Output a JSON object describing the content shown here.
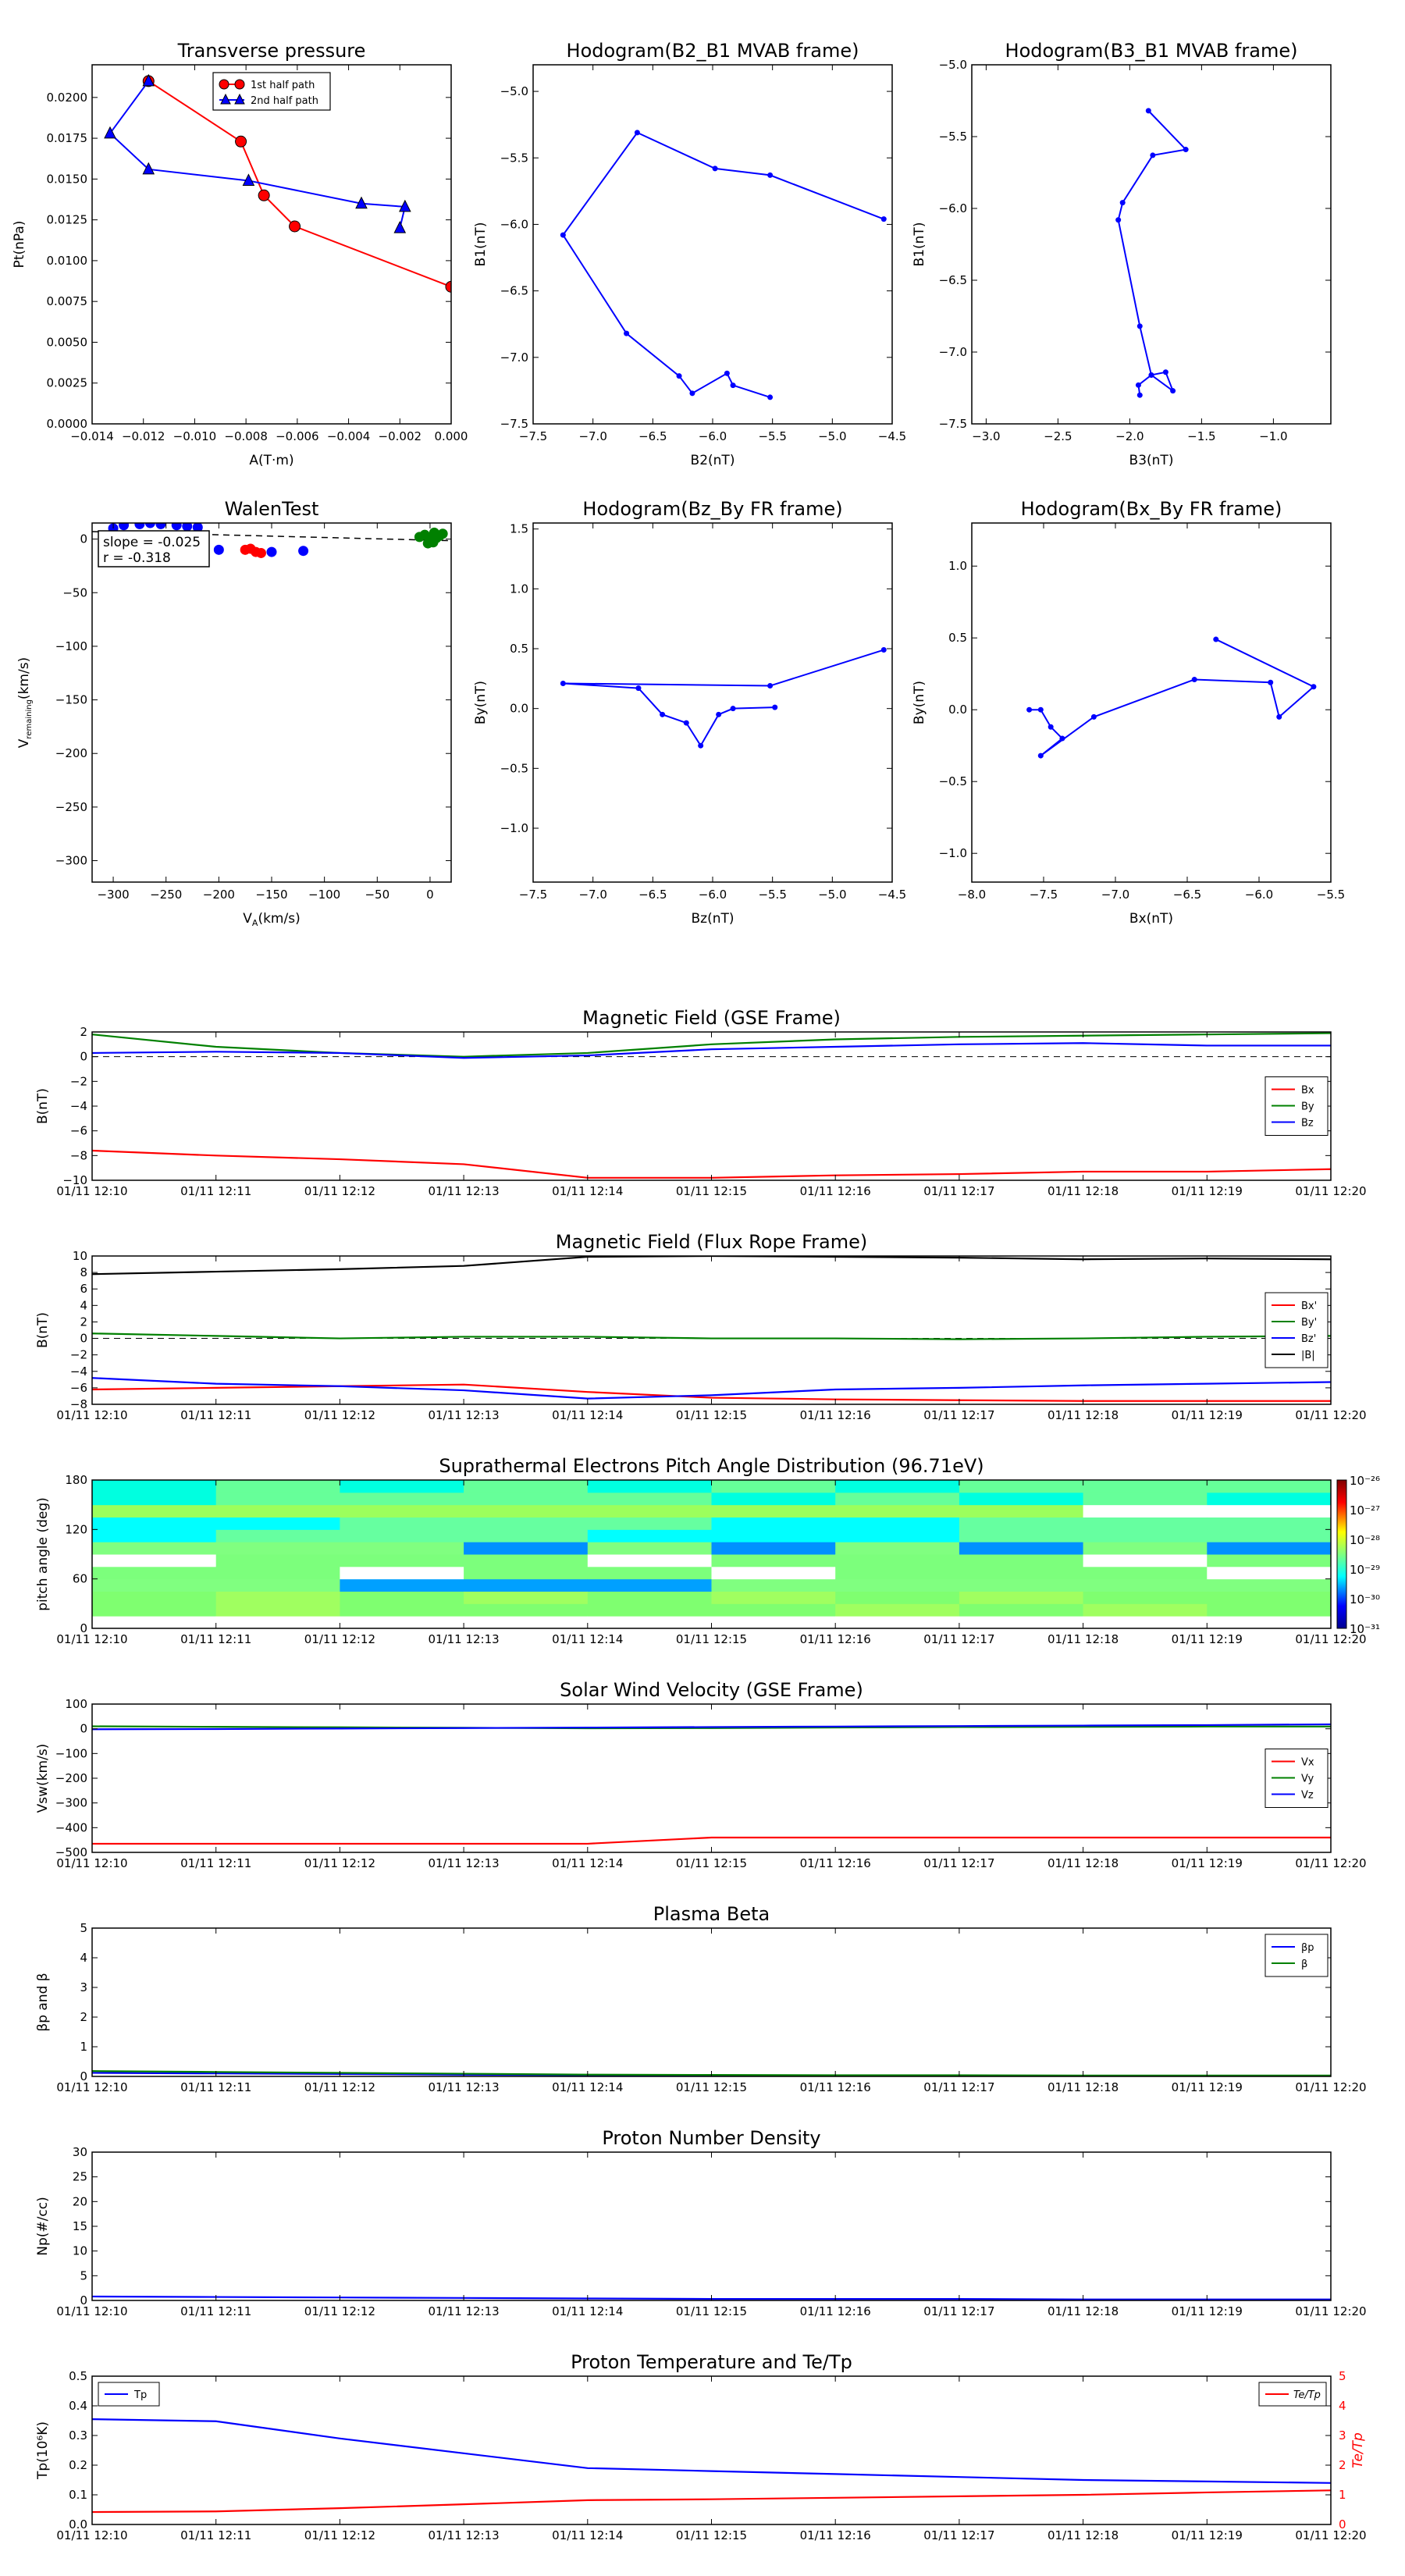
{
  "chart_data": [
    {
      "id": "tp",
      "type": "line",
      "title": "Transverse pressure",
      "xlabel": "A(T·m)",
      "ylabel": "Pt(nPa)",
      "xlim": [
        -0.014,
        0.0
      ],
      "ylim": [
        0.0,
        0.022
      ],
      "xticks": [
        -0.014,
        -0.012,
        -0.01,
        -0.008,
        -0.006,
        -0.004,
        -0.002,
        0.0
      ],
      "xtick_labels": [
        "−0.014",
        "−0.012",
        "−0.010",
        "−0.008",
        "−0.006",
        "−0.004",
        "−0.002",
        "0.000"
      ],
      "yticks": [
        0,
        0.0025,
        0.005,
        0.0075,
        0.01,
        0.0125,
        0.015,
        0.0175,
        0.02
      ],
      "ytick_labels": [
        "0.0000",
        "0.0025",
        "0.0050",
        "0.0075",
        "0.0100",
        "0.0125",
        "0.0150",
        "0.0175",
        "0.0200"
      ],
      "legend": "top-center",
      "series": [
        {
          "name": "1st half path",
          "color": "#ff0000",
          "marker": "circle",
          "x": [
            -0.0118,
            -0.0082,
            -0.0073,
            -0.0061,
            0.0
          ],
          "y": [
            0.021,
            0.0173,
            0.014,
            0.0121,
            0.0084
          ]
        },
        {
          "name": "2nd half path",
          "color": "#0000ff",
          "marker": "triangle",
          "x": [
            -0.0118,
            -0.0133,
            -0.0118,
            -0.0079,
            -0.0035,
            -0.0018,
            -0.002
          ],
          "y": [
            0.021,
            0.0178,
            0.0156,
            0.0149,
            0.0135,
            0.0133,
            0.012
          ]
        }
      ]
    },
    {
      "id": "h1",
      "type": "line",
      "title": "Hodogram(B2_B1 MVAB frame)",
      "xlabel": "B2(nT)",
      "ylabel": "B1(nT)",
      "xlim": [
        -7.5,
        -4.5
      ],
      "ylim": [
        -7.5,
        -4.8
      ],
      "xticks": [
        -7.5,
        -7.0,
        -6.5,
        -6.0,
        -5.5,
        -5.0,
        -4.5
      ],
      "xtick_labels": [
        "−7.5",
        "−7.0",
        "−6.5",
        "−6.0",
        "−5.5",
        "−5.0",
        "−4.5"
      ],
      "yticks": [
        -7.5,
        -7.0,
        -6.5,
        -6.0,
        -5.5,
        -5.0
      ],
      "ytick_labels": [
        "−7.5",
        "−7.0",
        "−6.5",
        "−6.0",
        "−5.5",
        "−5.0"
      ],
      "series": [
        {
          "name": "",
          "color": "#0000ff",
          "marker": "dot",
          "x": [
            -5.52,
            -5.83,
            -5.88,
            -6.17,
            -6.28,
            -6.72,
            -7.25,
            -6.63,
            -5.98,
            -5.52,
            -4.57
          ],
          "y": [
            -7.3,
            -7.21,
            -7.12,
            -7.27,
            -7.14,
            -6.82,
            -6.08,
            -5.31,
            -5.58,
            -5.63,
            -5.96
          ]
        }
      ]
    },
    {
      "id": "h2",
      "type": "line",
      "title": "Hodogram(B3_B1 MVAB frame)",
      "xlabel": "B3(nT)",
      "ylabel": "B1(nT)",
      "xlim": [
        -3.1,
        -0.6
      ],
      "ylim": [
        -7.5,
        -5.0
      ],
      "xticks": [
        -3.0,
        -2.5,
        -2.0,
        -1.5,
        -1.0
      ],
      "xtick_labels": [
        "−3.0",
        "−2.5",
        "−2.0",
        "−1.5",
        "−1.0"
      ],
      "yticks": [
        -7.5,
        -7.0,
        -6.5,
        -6.0,
        -5.5,
        -5.0
      ],
      "ytick_labels": [
        "−7.5",
        "−7.0",
        "−6.5",
        "−6.0",
        "−5.5",
        "−5.0"
      ],
      "series": [
        {
          "name": "",
          "color": "#0000ff",
          "marker": "dot",
          "x": [
            -1.93,
            -1.94,
            -1.85,
            -1.75,
            -1.7,
            -1.85,
            -1.93,
            -2.08,
            -2.05,
            -1.84,
            -1.61,
            -1.87
          ],
          "y": [
            -7.3,
            -7.23,
            -7.16,
            -7.14,
            -7.27,
            -7.16,
            -6.82,
            -6.08,
            -5.96,
            -5.63,
            -5.59,
            -5.32
          ]
        }
      ]
    },
    {
      "id": "walen",
      "type": "scatter",
      "title": "WalenTest",
      "xlabel": "V_A(km/s)",
      "ylabel": "V_remaining(km/s)",
      "xlim": [
        -320,
        20
      ],
      "ylim": [
        -320,
        15
      ],
      "xticks": [
        -300,
        -250,
        -200,
        -150,
        -100,
        -50,
        0
      ],
      "xtick_labels": [
        "−300",
        "−250",
        "−200",
        "−150",
        "−100",
        "−50",
        "0"
      ],
      "yticks": [
        -300,
        -250,
        -200,
        -150,
        -100,
        -50,
        0
      ],
      "ytick_labels": [
        "−300",
        "−250",
        "−200",
        "−150",
        "−100",
        "−50",
        "0"
      ],
      "annotation": [
        "slope = -0.025",
        "r = -0.318"
      ],
      "fit": {
        "slope": -0.025,
        "intercept": -1.0
      },
      "series": [
        {
          "name": "",
          "color": "#ff0000",
          "x": [
            -175,
            -170,
            -165,
            -160
          ],
          "y": [
            -10,
            -9,
            -12,
            -13
          ]
        },
        {
          "name": "",
          "color": "#0000ff",
          "x": [
            -300,
            -290,
            -275,
            -265,
            -255,
            -240,
            -230,
            -220,
            -200,
            -150,
            -120
          ],
          "y": [
            10,
            13,
            14,
            15,
            14,
            13,
            12,
            11,
            -10,
            -12,
            -11
          ]
        },
        {
          "name": "",
          "color": "#008000",
          "x": [
            -10,
            -5,
            0,
            3,
            6,
            9,
            12,
            -2,
            4
          ],
          "y": [
            2,
            4,
            0,
            -3,
            1,
            3,
            5,
            -4,
            6
          ]
        }
      ]
    },
    {
      "id": "h3",
      "type": "line",
      "title": "Hodogram(Bz_By FR frame)",
      "xlabel": "Bz(nT)",
      "ylabel": "By(nT)",
      "xlim": [
        -7.5,
        -4.5
      ],
      "ylim": [
        -1.45,
        1.55
      ],
      "xticks": [
        -7.5,
        -7.0,
        -6.5,
        -6.0,
        -5.5,
        -5.0,
        -4.5
      ],
      "xtick_labels": [
        "−7.5",
        "−7.0",
        "−6.5",
        "−6.0",
        "−5.5",
        "−5.0",
        "−4.5"
      ],
      "yticks": [
        -1.0,
        -0.5,
        0.0,
        0.5,
        1.0,
        1.5
      ],
      "ytick_labels": [
        "−1.0",
        "−0.5",
        "0.0",
        "0.5",
        "1.0",
        "1.5"
      ],
      "series": [
        {
          "name": "",
          "color": "#0000ff",
          "marker": "dot",
          "x": [
            -5.48,
            -5.83,
            -5.95,
            -6.1,
            -6.22,
            -6.42,
            -6.62,
            -7.25,
            -5.52,
            -4.57
          ],
          "y": [
            0.01,
            0.0,
            -0.05,
            -0.31,
            -0.12,
            -0.05,
            0.17,
            0.21,
            0.19,
            0.49
          ]
        }
      ]
    },
    {
      "id": "h4",
      "type": "line",
      "title": "Hodogram(Bx_By FR frame)",
      "xlabel": "Bx(nT)",
      "ylabel": "By(nT)",
      "xlim": [
        -8.0,
        -5.5
      ],
      "ylim": [
        -1.2,
        1.3
      ],
      "xticks": [
        -8.0,
        -7.5,
        -7.0,
        -6.5,
        -6.0,
        -5.5
      ],
      "xtick_labels": [
        "−8.0",
        "−7.5",
        "−7.0",
        "−6.5",
        "−6.0",
        "−5.5"
      ],
      "yticks": [
        -1.0,
        -0.5,
        0.0,
        0.5,
        1.0
      ],
      "ytick_labels": [
        "−1.0",
        "−0.5",
        "0.0",
        "0.5",
        "1.0"
      ],
      "series": [
        {
          "name": "",
          "color": "#0000ff",
          "marker": "dot",
          "x": [
            -7.6,
            -7.52,
            -7.45,
            -7.37,
            -7.52,
            -7.15,
            -6.45,
            -5.92,
            -5.86,
            -5.62,
            -6.3
          ],
          "y": [
            0.0,
            0.0,
            -0.12,
            -0.2,
            -0.32,
            -0.05,
            0.21,
            0.19,
            -0.05,
            0.16,
            0.49
          ]
        }
      ]
    }
  ],
  "time_axis": {
    "labels": [
      "01/11 12:10",
      "01/11 12:11",
      "01/11 12:12",
      "01/11 12:13",
      "01/11 12:14",
      "01/11 12:15",
      "01/11 12:16",
      "01/11 12:17",
      "01/11 12:18",
      "01/11 12:19",
      "01/11 12:20"
    ],
    "sample_minutes": [
      0,
      1,
      2,
      3,
      4,
      5,
      6,
      7,
      8,
      9,
      10
    ]
  },
  "time_series": [
    {
      "id": "mag_gse",
      "type": "line",
      "title": "Magnetic Field (GSE Frame)",
      "ylabel": "B(nT)",
      "ylim": [
        -10,
        2
      ],
      "yticks": [
        -10,
        -8,
        -6,
        -4,
        -2,
        0,
        2
      ],
      "ytick_labels": [
        "−10",
        "−8",
        "−6",
        "−4",
        "−2",
        "0",
        "2"
      ],
      "legend": "right",
      "zero_line": true,
      "series": [
        {
          "name": "Bx",
          "color": "#ff0000",
          "values": [
            -7.6,
            -8.0,
            -8.3,
            -8.7,
            -9.8,
            -9.8,
            -9.6,
            -9.5,
            -9.3,
            -9.3,
            -9.1
          ]
        },
        {
          "name": "By",
          "color": "#008000",
          "values": [
            1.8,
            0.8,
            0.3,
            0.0,
            0.3,
            1.0,
            1.4,
            1.6,
            1.7,
            1.8,
            1.9
          ]
        },
        {
          "name": "Bz",
          "color": "#0000ff",
          "values": [
            0.3,
            0.4,
            0.3,
            -0.1,
            0.1,
            0.6,
            0.8,
            1.0,
            1.1,
            0.9,
            0.9
          ]
        }
      ]
    },
    {
      "id": "mag_fr",
      "type": "line",
      "title": "Magnetic Field (Flux Rope Frame)",
      "ylabel": "B(nT)",
      "ylim": [
        -8,
        10
      ],
      "yticks": [
        -8,
        -6,
        -4,
        -2,
        0,
        2,
        4,
        6,
        8,
        10
      ],
      "ytick_labels": [
        "−8",
        "−6",
        "−4",
        "−2",
        "0",
        "2",
        "4",
        "6",
        "8",
        "10"
      ],
      "legend": "right",
      "zero_line": true,
      "series": [
        {
          "name": "Bx'",
          "color": "#ff0000",
          "values": [
            -6.2,
            -6.0,
            -5.8,
            -5.6,
            -6.5,
            -7.2,
            -7.4,
            -7.5,
            -7.6,
            -7.6,
            -7.6
          ]
        },
        {
          "name": "By'",
          "color": "#008000",
          "values": [
            0.6,
            0.3,
            0.0,
            0.2,
            0.2,
            0.0,
            0.0,
            -0.1,
            0.0,
            0.2,
            0.3
          ]
        },
        {
          "name": "Bz'",
          "color": "#0000ff",
          "values": [
            -4.8,
            -5.5,
            -5.8,
            -6.3,
            -7.3,
            -6.9,
            -6.2,
            -6.0,
            -5.7,
            -5.5,
            -5.3
          ]
        },
        {
          "name": "|B|",
          "color": "#000000",
          "values": [
            7.8,
            8.1,
            8.4,
            8.8,
            9.9,
            10.0,
            9.9,
            9.8,
            9.6,
            9.7,
            9.6
          ]
        }
      ]
    },
    {
      "id": "pad",
      "type": "heatmap",
      "title": "Suprathermal Electrons Pitch Angle Distribution (96.71eV)",
      "ylabel": "pitch angle (deg)",
      "ylim": [
        0,
        180
      ],
      "yticks": [
        0,
        60,
        120,
        180
      ],
      "ytick_labels": [
        "0",
        "60",
        "120",
        "180"
      ],
      "colorbar_labels": [
        "10⁻²⁶",
        "10⁻²⁷",
        "10⁻²⁸",
        "10⁻²⁹",
        "10⁻³⁰",
        "10⁻³¹"
      ],
      "colorbar_range_log10": [
        -31,
        -26
      ]
    },
    {
      "id": "vsw",
      "type": "line",
      "title": "Solar Wind Velocity (GSE Frame)",
      "ylabel": "Vsw(km/s)",
      "ylim": [
        -500,
        100
      ],
      "yticks": [
        -500,
        -400,
        -300,
        -200,
        -100,
        0,
        100
      ],
      "ytick_labels": [
        "−500",
        "−400",
        "−300",
        "−200",
        "−100",
        "0",
        "100"
      ],
      "legend": "right",
      "series": [
        {
          "name": "Vx",
          "color": "#ff0000",
          "values": [
            -465,
            -465,
            -465,
            -465,
            -465,
            -440,
            -440,
            -440,
            -440,
            -440,
            -440
          ]
        },
        {
          "name": "Vy",
          "color": "#008000",
          "values": [
            10,
            8,
            6,
            4,
            2,
            3,
            5,
            7,
            8,
            9,
            9
          ]
        },
        {
          "name": "Vz",
          "color": "#0000ff",
          "values": [
            -2,
            -1,
            1,
            3,
            5,
            7,
            9,
            11,
            13,
            15,
            18
          ]
        }
      ]
    },
    {
      "id": "beta",
      "type": "line",
      "title": "Plasma Beta",
      "ylabel": "βp and β",
      "ylim": [
        0,
        5
      ],
      "yticks": [
        0,
        1,
        2,
        3,
        4,
        5
      ],
      "ytick_labels": [
        "0",
        "1",
        "2",
        "3",
        "4",
        "5"
      ],
      "legend": "top-right",
      "series": [
        {
          "name": "βp",
          "color": "#0000ff",
          "values": [
            0.12,
            0.1,
            0.08,
            0.06,
            0.04,
            0.03,
            0.03,
            0.02,
            0.02,
            0.02,
            0.02
          ]
        },
        {
          "name": "β",
          "color": "#008000",
          "values": [
            0.18,
            0.15,
            0.12,
            0.09,
            0.06,
            0.05,
            0.04,
            0.04,
            0.03,
            0.03,
            0.03
          ]
        }
      ]
    },
    {
      "id": "np",
      "type": "line",
      "title": "Proton Number Density",
      "ylabel": "Np(#/cc)",
      "ylim": [
        0,
        30
      ],
      "yticks": [
        0,
        5,
        10,
        15,
        20,
        25,
        30
      ],
      "ytick_labels": [
        "0",
        "5",
        "10",
        "15",
        "20",
        "25",
        "30"
      ],
      "series": [
        {
          "name": "",
          "color": "#0000ff",
          "values": [
            0.8,
            0.7,
            0.6,
            0.5,
            0.4,
            0.3,
            0.3,
            0.3,
            0.2,
            0.2,
            0.2
          ]
        }
      ]
    },
    {
      "id": "tp_temp",
      "type": "line",
      "title": "Proton Temperature and Te/Tp",
      "ylabel": "Tp(10⁶K)",
      "y2label": "Te/Tp",
      "ylim": [
        0,
        0.5
      ],
      "yticks": [
        0,
        0.1,
        0.2,
        0.3,
        0.4,
        0.5
      ],
      "ytick_labels": [
        "0.0",
        "0.1",
        "0.2",
        "0.3",
        "0.4",
        "0.5"
      ],
      "y2lim": [
        0,
        5
      ],
      "y2ticks": [
        0,
        1,
        2,
        3,
        4,
        5
      ],
      "y2tick_labels": [
        "0",
        "1",
        "2",
        "3",
        "4",
        "5"
      ],
      "legend_left": [
        "Tp"
      ],
      "legend_right": [
        "Te/Tp"
      ],
      "series": [
        {
          "name": "Tp",
          "color": "#0000ff",
          "axis": "left",
          "values": [
            0.355,
            0.348,
            0.29,
            0.24,
            0.19,
            0.18,
            0.17,
            0.16,
            0.15,
            0.145,
            0.14
          ]
        },
        {
          "name": "Te/Tp",
          "color": "#ff0000",
          "axis": "right",
          "values": [
            0.42,
            0.44,
            0.55,
            0.68,
            0.82,
            0.85,
            0.9,
            0.95,
            1.0,
            1.08,
            1.15
          ]
        }
      ]
    }
  ]
}
